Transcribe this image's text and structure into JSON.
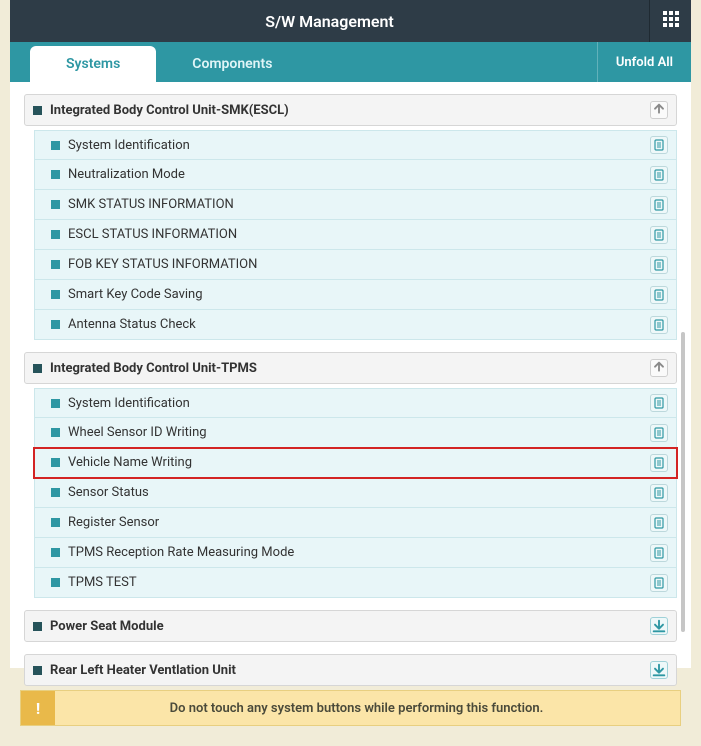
{
  "colors": {
    "header_bg": "#2e3c47",
    "tabbar_bg": "#2e97a3",
    "item_bg": "#e8f6f8",
    "item_border": "#cce7eb",
    "highlight_border": "#d32424",
    "warning_bg": "#fbe5a8",
    "warning_icon_bg": "#e9b94a",
    "page_bg": "#f1ecd8"
  },
  "titlebar": {
    "title": "S/W Management"
  },
  "tabs": {
    "items": [
      {
        "label": "Systems",
        "active": true
      },
      {
        "label": "Components",
        "active": false
      }
    ],
    "unfold": "Unfold All"
  },
  "groups": [
    {
      "title": "Integrated Body Control Unit-SMK(ESCL)",
      "header_icon": "collapse",
      "items": [
        {
          "label": "System Identification"
        },
        {
          "label": "Neutralization Mode"
        },
        {
          "label": "SMK STATUS INFORMATION"
        },
        {
          "label": "ESCL STATUS INFORMATION"
        },
        {
          "label": "FOB KEY STATUS INFORMATION"
        },
        {
          "label": "Smart Key Code Saving"
        },
        {
          "label": "Antenna Status Check"
        }
      ]
    },
    {
      "title": "Integrated Body Control Unit-TPMS",
      "header_icon": "collapse",
      "items": [
        {
          "label": "System Identification"
        },
        {
          "label": "Wheel Sensor ID Writing"
        },
        {
          "label": "Vehicle Name Writing",
          "highlight": true
        },
        {
          "label": "Sensor Status"
        },
        {
          "label": "Register Sensor"
        },
        {
          "label": "TPMS Reception Rate Measuring Mode"
        },
        {
          "label": "TPMS TEST"
        }
      ]
    },
    {
      "title": "Power Seat Module",
      "header_icon": "download",
      "items": []
    },
    {
      "title": "Rear Left Heater Ventlation Unit",
      "header_icon": "download",
      "items": []
    }
  ],
  "warning": {
    "icon": "!",
    "message": "Do not touch any system buttons while performing this function."
  }
}
